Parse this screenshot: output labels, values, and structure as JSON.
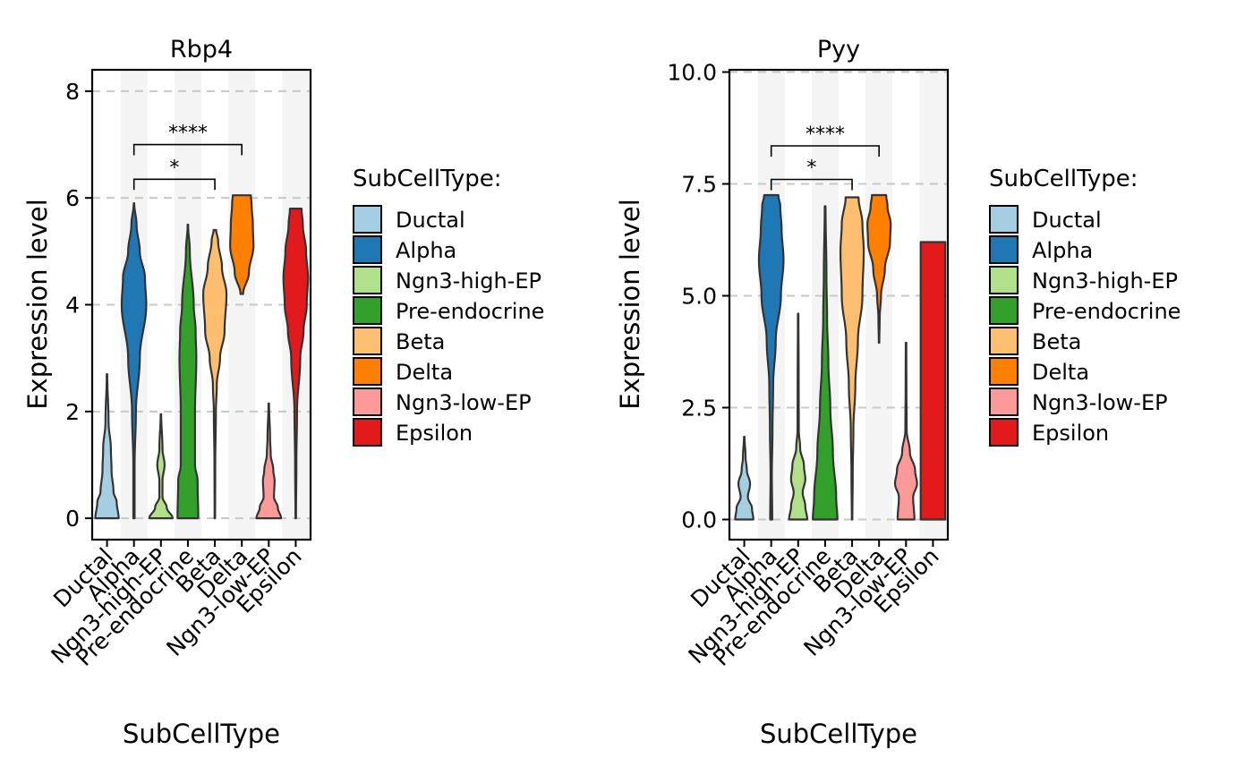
{
  "chart_data": [
    {
      "type": "violin",
      "title": "Rbp4",
      "xlabel": "SubCellType",
      "ylabel": "Expression level",
      "ylim": [
        -0.4,
        8.4
      ],
      "yticks": [
        "0",
        "2",
        "4",
        "6",
        "8"
      ],
      "ytick_values": [
        0,
        2,
        4,
        6,
        8
      ],
      "grid": "horizontal-dashed",
      "categories": [
        "Ductal",
        "Alpha",
        "Ngn3-high-EP",
        "Pre-endocrine",
        "Beta",
        "Delta",
        "Ngn3-low-EP",
        "Epsilon"
      ],
      "violins": [
        {
          "category": "Ductal",
          "min": 0.0,
          "max": 2.7,
          "profile": [
            [
              0,
              0.9
            ],
            [
              0.3,
              0.75
            ],
            [
              0.5,
              0.5
            ],
            [
              0.9,
              0.35
            ],
            [
              1.3,
              0.3
            ],
            [
              1.8,
              0.12
            ],
            [
              2.7,
              0.02
            ]
          ]
        },
        {
          "category": "Alpha",
          "min": 0.0,
          "max": 5.9,
          "profile": [
            [
              0,
              0.05
            ],
            [
              1.0,
              0.05
            ],
            [
              2.0,
              0.15
            ],
            [
              3.0,
              0.45
            ],
            [
              4.0,
              0.95
            ],
            [
              4.5,
              0.85
            ],
            [
              5.0,
              0.45
            ],
            [
              5.5,
              0.2
            ],
            [
              5.9,
              0.02
            ]
          ]
        },
        {
          "category": "Ngn3-high-EP",
          "min": 0.0,
          "max": 1.95,
          "profile": [
            [
              0,
              0.9
            ],
            [
              0.2,
              0.45
            ],
            [
              0.4,
              0.12
            ],
            [
              0.7,
              0.12
            ],
            [
              1.0,
              0.28
            ],
            [
              1.3,
              0.12
            ],
            [
              1.95,
              0.02
            ]
          ]
        },
        {
          "category": "Pre-endocrine",
          "min": 0.0,
          "max": 5.5,
          "profile": [
            [
              0,
              0.8
            ],
            [
              0.7,
              0.75
            ],
            [
              1.0,
              0.55
            ],
            [
              2.0,
              0.55
            ],
            [
              3.0,
              0.65
            ],
            [
              3.5,
              0.6
            ],
            [
              4.0,
              0.45
            ],
            [
              5.0,
              0.15
            ],
            [
              5.5,
              0.02
            ]
          ]
        },
        {
          "category": "Beta",
          "min": 0.0,
          "max": 5.4,
          "profile": [
            [
              0,
              0.02
            ],
            [
              1.0,
              0.03
            ],
            [
              2.0,
              0.08
            ],
            [
              2.5,
              0.15
            ],
            [
              3.0,
              0.4
            ],
            [
              3.5,
              0.75
            ],
            [
              4.2,
              0.9
            ],
            [
              4.7,
              0.55
            ],
            [
              5.2,
              0.25
            ],
            [
              5.4,
              0.1
            ]
          ]
        },
        {
          "category": "Delta",
          "min": 4.2,
          "max": 6.05,
          "profile": [
            [
              4.2,
              0.1
            ],
            [
              4.6,
              0.55
            ],
            [
              5.1,
              0.9
            ],
            [
              5.5,
              0.85
            ],
            [
              5.9,
              0.75
            ],
            [
              6.05,
              0.7
            ]
          ]
        },
        {
          "category": "Ngn3-low-EP",
          "min": 0.0,
          "max": 2.15,
          "profile": [
            [
              0,
              0.95
            ],
            [
              0.2,
              0.7
            ],
            [
              0.4,
              0.4
            ],
            [
              0.7,
              0.45
            ],
            [
              0.9,
              0.35
            ],
            [
              1.2,
              0.15
            ],
            [
              1.5,
              0.1
            ],
            [
              2.15,
              0.02
            ]
          ]
        },
        {
          "category": "Epsilon",
          "min": 0.0,
          "max": 5.8,
          "profile": [
            [
              0,
              0.02
            ],
            [
              1.0,
              0.05
            ],
            [
              2.0,
              0.1
            ],
            [
              3.0,
              0.35
            ],
            [
              3.5,
              0.6
            ],
            [
              4.0,
              0.85
            ],
            [
              4.5,
              0.95
            ],
            [
              5.0,
              0.8
            ],
            [
              5.5,
              0.55
            ],
            [
              5.8,
              0.45
            ]
          ]
        }
      ],
      "significance": [
        {
          "from": "Alpha",
          "to": "Beta",
          "y": 6.35,
          "label": "*"
        },
        {
          "from": "Alpha",
          "to": "Delta",
          "y": 7.0,
          "label": "****"
        }
      ]
    },
    {
      "type": "violin",
      "title": "Pyy",
      "xlabel": "SubCellType",
      "ylabel": "Expression level",
      "ylim": [
        -0.45,
        10.05
      ],
      "yticks": [
        "0.0",
        "2.5",
        "5.0",
        "7.5",
        "10.0"
      ],
      "ytick_values": [
        0,
        2.5,
        5.0,
        7.5,
        10.0
      ],
      "grid": "horizontal-dashed",
      "categories": [
        "Ductal",
        "Alpha",
        "Ngn3-high-EP",
        "Pre-endocrine",
        "Beta",
        "Delta",
        "Ngn3-low-EP",
        "Epsilon"
      ],
      "violins": [
        {
          "category": "Ductal",
          "min": 0.0,
          "max": 1.85,
          "profile": [
            [
              0,
              0.7
            ],
            [
              0.25,
              0.6
            ],
            [
              0.5,
              0.28
            ],
            [
              0.8,
              0.45
            ],
            [
              1.1,
              0.2
            ],
            [
              1.4,
              0.1
            ],
            [
              1.85,
              0.02
            ]
          ]
        },
        {
          "category": "Alpha",
          "min": 0.0,
          "max": 7.25,
          "profile": [
            [
              0,
              0.08
            ],
            [
              1.0,
              0.05
            ],
            [
              2.0,
              0.1
            ],
            [
              3.0,
              0.15
            ],
            [
              4.0,
              0.35
            ],
            [
              5.0,
              0.75
            ],
            [
              5.8,
              0.95
            ],
            [
              6.5,
              0.8
            ],
            [
              7.0,
              0.7
            ],
            [
              7.25,
              0.55
            ]
          ]
        },
        {
          "category": "Ngn3-high-EP",
          "min": 0.0,
          "max": 4.6,
          "profile": [
            [
              0,
              0.7
            ],
            [
              0.3,
              0.55
            ],
            [
              0.6,
              0.35
            ],
            [
              0.9,
              0.55
            ],
            [
              1.2,
              0.45
            ],
            [
              1.6,
              0.15
            ],
            [
              2.0,
              0.05
            ],
            [
              3.0,
              0.04
            ],
            [
              4.6,
              0.02
            ]
          ]
        },
        {
          "category": "Pre-endocrine",
          "min": 0.0,
          "max": 7.0,
          "profile": [
            [
              0,
              0.95
            ],
            [
              0.5,
              0.85
            ],
            [
              1.5,
              0.6
            ],
            [
              2.5,
              0.4
            ],
            [
              3.5,
              0.25
            ],
            [
              4.5,
              0.15
            ],
            [
              5.5,
              0.1
            ],
            [
              7.0,
              0.03
            ]
          ]
        },
        {
          "category": "Beta",
          "min": 0.0,
          "max": 7.2,
          "profile": [
            [
              0,
              0.02
            ],
            [
              1.0,
              0.05
            ],
            [
              2.0,
              0.1
            ],
            [
              3.0,
              0.25
            ],
            [
              4.0,
              0.45
            ],
            [
              5.0,
              0.8
            ],
            [
              6.0,
              0.9
            ],
            [
              6.6,
              0.8
            ],
            [
              7.2,
              0.5
            ]
          ]
        },
        {
          "category": "Delta",
          "min": 3.95,
          "max": 7.25,
          "profile": [
            [
              3.95,
              0.02
            ],
            [
              4.5,
              0.05
            ],
            [
              5.0,
              0.15
            ],
            [
              5.6,
              0.45
            ],
            [
              6.2,
              0.85
            ],
            [
              6.6,
              0.9
            ],
            [
              7.0,
              0.65
            ],
            [
              7.25,
              0.55
            ]
          ]
        },
        {
          "category": "Ngn3-low-EP",
          "min": 0.0,
          "max": 3.95,
          "profile": [
            [
              0,
              0.65
            ],
            [
              0.5,
              0.55
            ],
            [
              0.8,
              0.85
            ],
            [
              1.1,
              0.7
            ],
            [
              1.5,
              0.3
            ],
            [
              2.0,
              0.05
            ],
            [
              3.0,
              0.03
            ],
            [
              3.95,
              0.02
            ]
          ]
        },
        {
          "category": "Epsilon",
          "min": 0.0,
          "max": 6.2,
          "profile": [
            [
              0,
              0.95
            ],
            [
              1.0,
              0.95
            ],
            [
              2.0,
              0.95
            ],
            [
              3.0,
              0.95
            ],
            [
              4.0,
              0.95
            ],
            [
              5.0,
              0.95
            ],
            [
              6.0,
              0.95
            ],
            [
              6.2,
              0.95
            ]
          ]
        }
      ],
      "significance": [
        {
          "from": "Alpha",
          "to": "Beta",
          "y": 7.6,
          "label": "*"
        },
        {
          "from": "Alpha",
          "to": "Delta",
          "y": 8.35,
          "label": "****"
        }
      ]
    }
  ],
  "legend": {
    "title": "SubCellType:",
    "entries": [
      {
        "label": "Ductal",
        "color": "#a6cee3"
      },
      {
        "label": "Alpha",
        "color": "#1f78b4"
      },
      {
        "label": "Ngn3-high-EP",
        "color": "#b2df8a"
      },
      {
        "label": "Pre-endocrine",
        "color": "#33a02c"
      },
      {
        "label": "Beta",
        "color": "#fdbf6f"
      },
      {
        "label": "Delta",
        "color": "#ff7f00"
      },
      {
        "label": "Ngn3-low-EP",
        "color": "#fb9a99"
      },
      {
        "label": "Epsilon",
        "color": "#e31a1c"
      }
    ]
  },
  "colors": {
    "band": "#f4f4f4",
    "grid": "#c8c8c8",
    "outline": "#333333"
  }
}
